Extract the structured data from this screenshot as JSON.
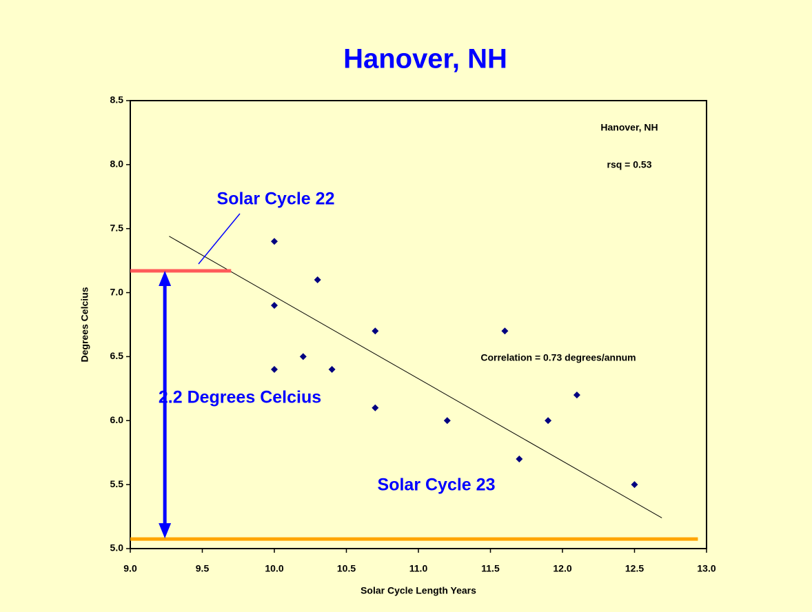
{
  "chart_data": {
    "type": "scatter",
    "title": "Hanover, NH",
    "x_label": "Solar Cycle Length Years",
    "y_label": "Degrees Celcius",
    "x": [
      10.0,
      10.0,
      10.0,
      10.2,
      10.3,
      10.4,
      10.7,
      10.7,
      11.2,
      11.6,
      11.7,
      11.9,
      12.1,
      12.5
    ],
    "values": [
      7.4,
      6.9,
      6.4,
      6.5,
      7.1,
      6.4,
      6.7,
      6.1,
      6.0,
      6.7,
      5.7,
      6.0,
      6.2,
      5.5
    ],
    "color": "#000080",
    "xlim": [
      9.0,
      13.0
    ],
    "ylim": [
      5.0,
      8.5
    ],
    "xticks": [
      {
        "value": 9,
        "label": "9.0"
      },
      9.5,
      {
        "value": 10,
        "label": "10.0"
      },
      10.5,
      {
        "value": 11,
        "label": "11.0"
      },
      11.5,
      {
        "value": 12,
        "label": "12.0"
      },
      12.5,
      {
        "value": 13,
        "label": "13.0"
      }
    ],
    "yticks": [
      {
        "value": 5,
        "label": "5.0"
      },
      5.5,
      {
        "value": 6,
        "label": "6.0"
      },
      6.5,
      {
        "value": 7,
        "label": "7.0"
      },
      7.5,
      {
        "value": 8,
        "label": "8.0"
      },
      8.5
    ],
    "trendline": {
      "x": [
        9.27,
        12.69
      ],
      "y": [
        7.44,
        5.24
      ],
      "color": "#000000"
    },
    "reference_lines": [
      {
        "y": 7.17,
        "x": [
          9.0,
          9.7
        ],
        "color": "#ff5a5a"
      },
      {
        "y": 5.075,
        "x": [
          9.0,
          12.94
        ],
        "color": "#ffa500"
      }
    ],
    "arrow": {
      "x": 9.24,
      "y": [
        7.17,
        5.08
      ],
      "color": "#0000ff"
    },
    "annotations": [
      "Solar Cycle 22",
      "2.2 Degrees Celcius",
      "Solar Cycle 23",
      "Hanover, NH",
      "rsq = 0.53",
      "Correlation = 0.73 degrees/annum"
    ]
  }
}
